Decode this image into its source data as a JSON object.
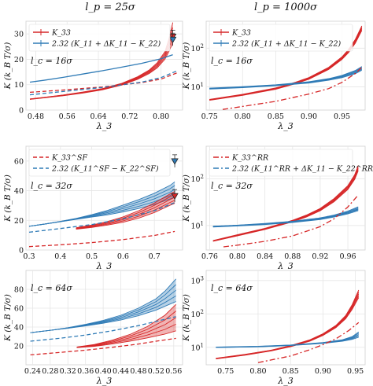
{
  "column_titles": [
    "l_p = 25σ",
    "l_p = 1000σ"
  ],
  "ylabel": "K (k_B T/σ)",
  "xlabel": "λ_3",
  "colors": {
    "red": "#d62728",
    "blue": "#2f7bb6",
    "panel_bg": "#ffffff",
    "grid": "#e6e6e6",
    "frame": "#cfcfcf"
  },
  "chart_data": [
    {
      "panel": "row1-col1",
      "type": "line",
      "scale_y": "linear",
      "xlabel": "λ_3",
      "ylabel": "K (k_B T/σ)",
      "xlim": [
        0.455,
        0.855
      ],
      "ylim": [
        0,
        35
      ],
      "xticks": [
        0.48,
        0.56,
        0.64,
        0.72,
        0.8
      ],
      "xtick_labels": [
        "0.48",
        "0.56",
        "0.64",
        "0.72",
        "0.80"
      ],
      "yticks": [
        0,
        10,
        20,
        30
      ],
      "ytick_labels": [
        "0",
        "10",
        "20",
        "30"
      ],
      "annotation": "l_c = 16σ",
      "legend": {
        "placement": "top-left",
        "entries": [
          {
            "label": "K_33",
            "color": "#d62728",
            "style": "errorbar"
          },
          {
            "label": "2.32 (K_11 + ΔK_11 − K_22)",
            "color": "#2f7bb6",
            "style": "errorbar"
          }
        ]
      },
      "series": [
        {
          "name": "K_33",
          "color": "#d62728",
          "style": "band",
          "x": [
            0.465,
            0.5,
            0.55,
            0.6,
            0.65,
            0.7,
            0.74,
            0.77,
            0.79,
            0.81,
            0.82,
            0.83
          ],
          "values": [
            4.3,
            4.9,
            5.8,
            6.9,
            8.2,
            10.2,
            12.6,
            15.1,
            17.6,
            21.5,
            25.5,
            30.5
          ],
          "spread": [
            0.1,
            0.1,
            0.15,
            0.2,
            0.25,
            0.35,
            0.5,
            0.7,
            1.0,
            1.5,
            2.5,
            4.0
          ]
        },
        {
          "color": "#2f7bb6",
          "style": "solid",
          "x": [
            0.465,
            0.5,
            0.55,
            0.6,
            0.65,
            0.7,
            0.75,
            0.8,
            0.83
          ],
          "values": [
            11.0,
            11.7,
            12.9,
            14.2,
            15.5,
            16.9,
            18.4,
            20.2,
            21.8
          ]
        },
        {
          "color": "#d62728",
          "style": "dashed",
          "x": [
            0.465,
            0.55,
            0.65,
            0.75,
            0.8,
            0.84
          ],
          "values": [
            7.0,
            7.9,
            9.1,
            10.8,
            12.2,
            14.6
          ]
        },
        {
          "color": "#2f7bb6",
          "style": "dashed",
          "x": [
            0.465,
            0.55,
            0.65,
            0.75,
            0.8,
            0.84
          ],
          "values": [
            6.0,
            7.3,
            8.9,
            11.0,
            12.8,
            15.4
          ]
        }
      ],
      "markers": [
        {
          "x": 0.83,
          "y": 29.0,
          "color": "#d62728"
        },
        {
          "x": 0.83,
          "y": 27.8,
          "color": "#2f7bb6"
        }
      ]
    },
    {
      "panel": "row1-col2",
      "type": "line",
      "scale_y": "log",
      "xlabel": "λ_3",
      "ylabel": "K (k_B T/σ)",
      "xlim": [
        0.745,
        0.985
      ],
      "ylim": [
        2.5,
        500
      ],
      "xticks": [
        0.75,
        0.8,
        0.85,
        0.9,
        0.95
      ],
      "xtick_labels": [
        "0.75",
        "0.80",
        "0.85",
        "0.90",
        "0.95"
      ],
      "yticks": [
        10,
        100
      ],
      "ytick_labels": [
        "10^1",
        "10^2"
      ],
      "annotation": "l_c = 16σ",
      "legend": {
        "placement": "top-left",
        "entries": [
          {
            "label": "K_33",
            "color": "#d62728",
            "style": "errorbar"
          },
          {
            "label": "2.32 (K_11 + ΔK_11 − K_22)",
            "color": "#2f7bb6",
            "style": "errorbar"
          }
        ]
      },
      "series": [
        {
          "name": "K_33",
          "color": "#d62728",
          "style": "band",
          "x": [
            0.75,
            0.8,
            0.85,
            0.88,
            0.9,
            0.93,
            0.95,
            0.96,
            0.97,
            0.98
          ],
          "values": [
            4.6,
            6.2,
            9.0,
            12.6,
            16.5,
            30.0,
            55.0,
            85.0,
            150.0,
            330.0
          ],
          "spread": [
            0.03,
            0.03,
            0.04,
            0.05,
            0.05,
            0.07,
            0.08,
            0.1,
            0.12,
            0.15
          ]
        },
        {
          "color": "#2f7bb6",
          "style": "band",
          "x": [
            0.75,
            0.8,
            0.85,
            0.9,
            0.93,
            0.95,
            0.97,
            0.98
          ],
          "values": [
            9.0,
            9.8,
            11.0,
            13.0,
            15.5,
            18.5,
            24.0,
            30.0
          ],
          "spread": [
            0.03,
            0.03,
            0.03,
            0.04,
            0.05,
            0.07,
            0.1,
            0.12
          ]
        },
        {
          "color": "#d62728",
          "style": "dashdot",
          "x": [
            0.77,
            0.8,
            0.85,
            0.9,
            0.93,
            0.95,
            0.97,
            0.98
          ],
          "values": [
            2.6,
            3.1,
            4.2,
            6.5,
            9.0,
            13.0,
            22.0,
            32.0
          ]
        }
      ]
    },
    {
      "panel": "row2-col1",
      "type": "line",
      "scale_y": "linear",
      "xlabel": "λ_3",
      "ylabel": "K (k_B T/σ)",
      "xlim": [
        0.29,
        0.79
      ],
      "ylim": [
        0,
        70
      ],
      "xticks": [
        0.3,
        0.4,
        0.5,
        0.6,
        0.7
      ],
      "xtick_labels": [
        "0.3",
        "0.4",
        "0.5",
        "0.6",
        "0.7"
      ],
      "yticks": [
        0,
        20,
        40,
        60
      ],
      "ytick_labels": [
        "0",
        "20",
        "40",
        "60"
      ],
      "annotation": "l_c = 32σ",
      "legend": {
        "placement": "top-left",
        "entries": [
          {
            "label": "K_33^SF",
            "color": "#d62728",
            "style": "dashed"
          },
          {
            "label": "2.32 (K_11^SF − K_22^SF)",
            "color": "#2f7bb6",
            "style": "dashed"
          }
        ]
      },
      "series": [
        {
          "color": "#2f7bb6",
          "style": "band",
          "x": [
            0.3,
            0.35,
            0.4,
            0.45,
            0.5,
            0.55,
            0.6,
            0.65,
            0.7,
            0.75,
            0.765
          ],
          "values": [
            16.0,
            17.5,
            19.2,
            21.0,
            23.0,
            25.2,
            28.0,
            31.0,
            34.5,
            39.0,
            41.0
          ],
          "spread": [
            0.0,
            0.0,
            0.1,
            0.3,
            0.8,
            1.5,
            2.3,
            3.0,
            3.8,
            4.6,
            5.0
          ]
        },
        {
          "color": "#d62728",
          "style": "band",
          "x": [
            0.45,
            0.5,
            0.55,
            0.6,
            0.65,
            0.7,
            0.75,
            0.765
          ],
          "values": [
            14.5,
            16.0,
            18.0,
            20.5,
            24.0,
            28.5,
            34.0,
            35.5
          ],
          "spread": [
            0.5,
            0.8,
            1.2,
            1.8,
            2.5,
            3.2,
            3.8,
            4.0
          ]
        },
        {
          "name": "K_33^SF",
          "color": "#d62728",
          "style": "dashed",
          "x": [
            0.3,
            0.4,
            0.5,
            0.6,
            0.7,
            0.765
          ],
          "values": [
            2.3,
            3.5,
            5.0,
            7.0,
            9.8,
            12.5
          ]
        },
        {
          "name": "2.32 (K_11^SF − K_22^SF)",
          "color": "#2f7bb6",
          "style": "dashed",
          "x": [
            0.3,
            0.4,
            0.5,
            0.6,
            0.7,
            0.765
          ],
          "values": [
            12.0,
            14.5,
            17.2,
            21.0,
            26.5,
            32.0
          ]
        }
      ],
      "markers": [
        {
          "x": 0.765,
          "y": 60.0,
          "color": "#2f7bb6"
        },
        {
          "x": 0.765,
          "y": 36.5,
          "color": "#d62728"
        }
      ]
    },
    {
      "panel": "row2-col2",
      "type": "line",
      "scale_y": "log",
      "xlabel": "λ_3",
      "ylabel": "K (k_B T/σ)",
      "xlim": [
        0.755,
        0.985
      ],
      "ylim": [
        3,
        500
      ],
      "xticks": [
        0.76,
        0.8,
        0.84,
        0.88,
        0.92,
        0.96
      ],
      "xtick_labels": [
        "0.76",
        "0.80",
        "0.84",
        "0.88",
        "0.92",
        "0.96"
      ],
      "yticks": [
        10,
        100
      ],
      "ytick_labels": [
        "10^1",
        "10^2"
      ],
      "annotation": "l_c = 32σ",
      "legend": {
        "placement": "top-left",
        "entries": [
          {
            "label": "K_33^RR",
            "color": "#d62728",
            "style": "dashdot"
          },
          {
            "label": "2.32 (K_11^RR + ΔK_11 − K_22^RR)",
            "color": "#2f7bb6",
            "style": "dashdot"
          }
        ]
      },
      "series": [
        {
          "color": "#d62728",
          "style": "band",
          "x": [
            0.765,
            0.8,
            0.84,
            0.88,
            0.9,
            0.92,
            0.94,
            0.96,
            0.97,
            0.975
          ],
          "values": [
            4.7,
            6.2,
            8.5,
            12.5,
            16.0,
            22.0,
            35.0,
            65.0,
            110.0,
            170.0
          ],
          "spread": [
            0.02,
            0.03,
            0.03,
            0.04,
            0.05,
            0.06,
            0.08,
            0.1,
            0.12,
            0.14
          ]
        },
        {
          "color": "#2f7bb6",
          "style": "band",
          "x": [
            0.765,
            0.8,
            0.84,
            0.88,
            0.92,
            0.94,
            0.96,
            0.975
          ],
          "values": [
            9.5,
            10.0,
            10.8,
            12.0,
            14.0,
            16.0,
            19.0,
            23.0
          ],
          "spread": [
            0.02,
            0.02,
            0.03,
            0.03,
            0.04,
            0.05,
            0.07,
            0.1
          ]
        },
        {
          "name": "K_33^RR",
          "color": "#d62728",
          "style": "dashdot",
          "x": [
            0.78,
            0.8,
            0.84,
            0.88,
            0.92,
            0.94,
            0.96,
            0.975
          ],
          "values": [
            3.5,
            3.8,
            4.6,
            6.0,
            9.5,
            14.0,
            25.0,
            45.0
          ]
        },
        {
          "name": "2.32 (K_11^RR + ΔK_11 − K_22^RR)",
          "color": "#2f7bb6",
          "style": "dashdot",
          "x": [
            0.765,
            0.8,
            0.84,
            0.88,
            0.92,
            0.95,
            0.975
          ],
          "values": [
            9.6,
            10.1,
            10.9,
            12.2,
            14.5,
            17.5,
            22.0
          ]
        }
      ]
    },
    {
      "panel": "row3-col1",
      "type": "line",
      "scale_y": "linear",
      "xlabel": "λ_3",
      "ylabel": "K (k_B T/σ)",
      "xlim": [
        0.225,
        0.58
      ],
      "ylim": [
        0,
        100
      ],
      "xticks": [
        0.24,
        0.28,
        0.32,
        0.36,
        0.4,
        0.44,
        0.48,
        0.52,
        0.56
      ],
      "xtick_labels": [
        "0.24",
        "0.28",
        "0.32",
        "0.36",
        "0.40",
        "0.44",
        "0.48",
        "0.52",
        "0.56"
      ],
      "yticks": [
        20,
        40,
        60,
        80
      ],
      "ytick_labels": [
        "20",
        "40",
        "60",
        "80"
      ],
      "annotation": "l_c = 64σ",
      "series": [
        {
          "color": "#2f7bb6",
          "style": "band",
          "x": [
            0.235,
            0.28,
            0.32,
            0.36,
            0.4,
            0.44,
            0.48,
            0.52,
            0.54,
            0.565
          ],
          "values": [
            34.0,
            36.5,
            39.0,
            42.0,
            45.5,
            50.0,
            56.0,
            64.0,
            70.0,
            79.0
          ],
          "spread": [
            0.0,
            0.0,
            0.3,
            0.8,
            1.5,
            2.5,
            4.0,
            6.0,
            8.0,
            12.0
          ]
        },
        {
          "color": "#d62728",
          "style": "band",
          "x": [
            0.34,
            0.38,
            0.42,
            0.46,
            0.5,
            0.54,
            0.565
          ],
          "values": [
            18.5,
            20.5,
            24.0,
            28.5,
            34.5,
            42.5,
            50.0
          ],
          "spread": [
            0.3,
            1.0,
            2.0,
            3.5,
            6.0,
            10.0,
            14.0
          ]
        },
        {
          "color": "#2f7bb6",
          "style": "dashed",
          "x": [
            0.235,
            0.3,
            0.36,
            0.42,
            0.48,
            0.52,
            0.565
          ],
          "values": [
            25.0,
            28.0,
            31.5,
            36.0,
            41.5,
            46.0,
            51.0
          ]
        },
        {
          "color": "#d62728",
          "style": "dashed",
          "x": [
            0.235,
            0.3,
            0.36,
            0.42,
            0.48,
            0.52,
            0.565
          ],
          "values": [
            10.5,
            13.0,
            15.5,
            18.5,
            22.0,
            25.0,
            28.0
          ]
        }
      ]
    },
    {
      "panel": "row3-col2",
      "type": "line",
      "scale_y": "log",
      "xlabel": "λ_3",
      "ylabel": "K (k_B T/σ)",
      "xlim": [
        0.72,
        0.965
      ],
      "ylim": [
        3,
        2000
      ],
      "xticks": [
        0.75,
        0.8,
        0.85,
        0.9,
        0.95
      ],
      "xtick_labels": [
        "0.75",
        "0.80",
        "0.85",
        "0.90",
        "0.95"
      ],
      "yticks": [
        10,
        100,
        1000
      ],
      "ytick_labels": [
        "10^1",
        "10^2",
        "10^3"
      ],
      "annotation": "l_c = 64σ",
      "series": [
        {
          "color": "#d62728",
          "style": "band",
          "x": [
            0.735,
            0.78,
            0.82,
            0.85,
            0.88,
            0.9,
            0.92,
            0.935,
            0.945,
            0.955
          ],
          "values": [
            4.6,
            6.0,
            8.0,
            10.8,
            16.0,
            24.0,
            42.0,
            80.0,
            160.0,
            400.0
          ],
          "spread": [
            0.02,
            0.03,
            0.03,
            0.04,
            0.05,
            0.06,
            0.08,
            0.12,
            0.18,
            0.3
          ]
        },
        {
          "color": "#2f7bb6",
          "style": "band",
          "x": [
            0.735,
            0.8,
            0.85,
            0.9,
            0.93,
            0.945,
            0.955
          ],
          "values": [
            10.0,
            10.5,
            11.5,
            13.5,
            16.0,
            19.0,
            24.0
          ],
          "spread": [
            0.02,
            0.02,
            0.02,
            0.03,
            0.05,
            0.1,
            0.2
          ]
        },
        {
          "color": "#d62728",
          "style": "dashdot",
          "x": [
            0.8,
            0.85,
            0.88,
            0.9,
            0.92,
            0.94,
            0.955
          ],
          "values": [
            3.5,
            5.5,
            8.5,
            12.0,
            18.0,
            32.0,
            55.0
          ]
        }
      ]
    }
  ]
}
